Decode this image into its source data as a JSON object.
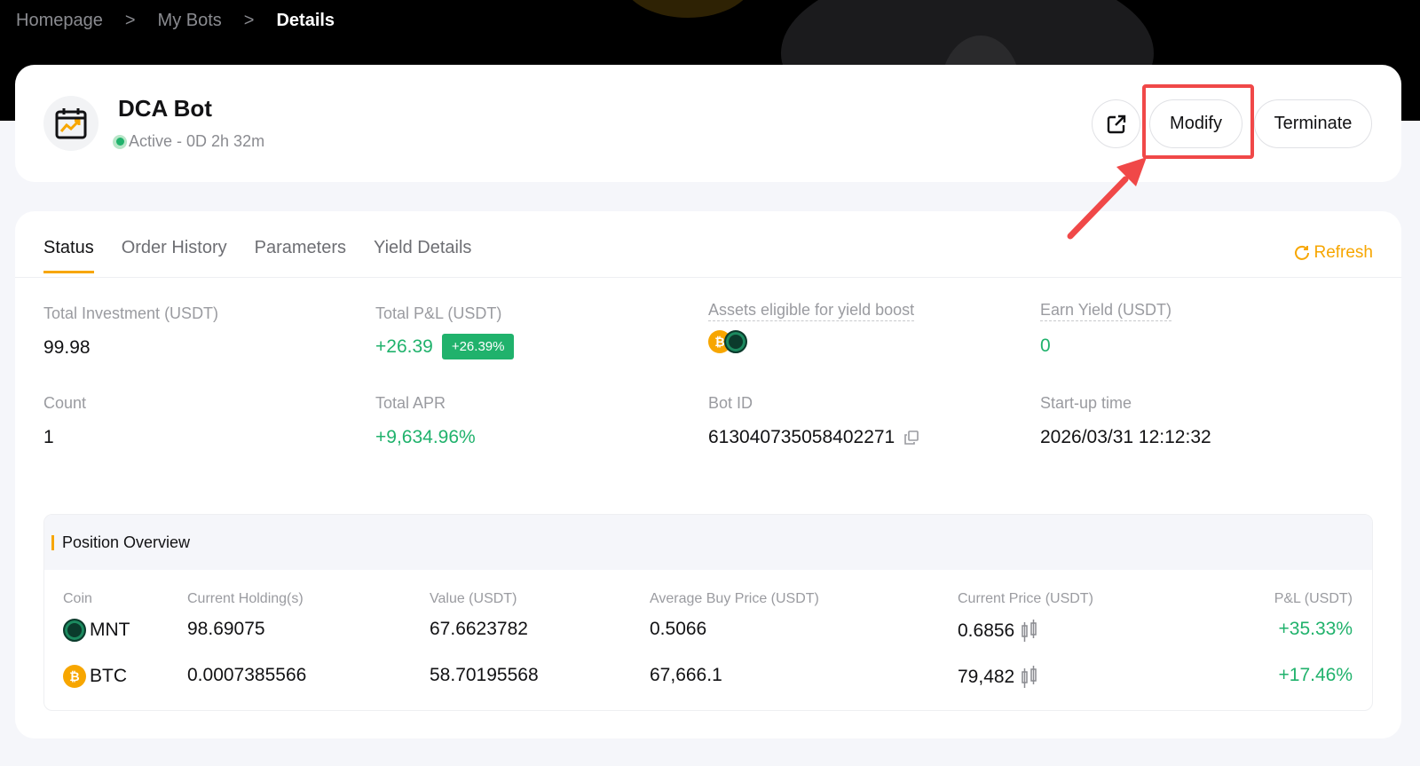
{
  "breadcrumb": [
    "Homepage",
    "My Bots",
    "Details"
  ],
  "bot": {
    "name": "DCA Bot",
    "status": "Active",
    "runtime": " - 0D 2h 32m"
  },
  "actions": {
    "share_icon": "external-link-icon",
    "modify": "Modify",
    "terminate": "Terminate"
  },
  "tabs": [
    "Status",
    "Order History",
    "Parameters",
    "Yield Details"
  ],
  "refresh": "Refresh",
  "stats": {
    "total_investment": {
      "label": "Total Investment (USDT)",
      "value": "99.98"
    },
    "total_pnl": {
      "label": "Total P&L (USDT)",
      "value": "+26.39",
      "badge": "+26.39%"
    },
    "yield_assets": {
      "label": "Assets eligible for yield boost",
      "coins": [
        "BTC",
        "MNT"
      ]
    },
    "earn_yield": {
      "label": "Earn Yield (USDT)",
      "value": "0"
    },
    "count": {
      "label": "Count",
      "value": "1"
    },
    "total_apr": {
      "label": "Total APR",
      "value": "+9,634.96%"
    },
    "bot_id": {
      "label": "Bot ID",
      "value": "613040735058402271"
    },
    "startup": {
      "label": "Start-up time",
      "value": "2026/03/31 12:12:32"
    }
  },
  "positions": {
    "title": "Position Overview",
    "columns": [
      "Coin",
      "Current Holding(s)",
      "Value (USDT)",
      "Average Buy Price (USDT)",
      "Current Price (USDT)",
      "P&L (USDT)"
    ],
    "rows": [
      {
        "coin": "MNT",
        "holding": "98.69075",
        "value": "67.6623782",
        "avg": "0.5066",
        "price": "0.6856",
        "pnl": "+35.33%"
      },
      {
        "coin": "BTC",
        "holding": "0.0007385566",
        "value": "58.70195568",
        "avg": "67,666.1",
        "price": "79,482",
        "pnl": "+17.46%"
      }
    ]
  },
  "colors": {
    "accent": "#f7a600",
    "positive": "#20b26c",
    "highlight": "#f04848"
  }
}
